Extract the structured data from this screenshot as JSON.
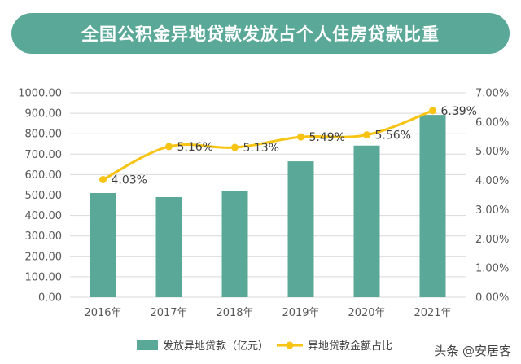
{
  "header": {
    "title": "全国公积金异地贷款发放占个人住房贷款比重"
  },
  "chart_data": {
    "type": "bar+line",
    "categories": [
      "2016年",
      "2017年",
      "2018年",
      "2019年",
      "2020年",
      "2021年"
    ],
    "series": [
      {
        "name": "发放异地贷款（亿元）",
        "type": "bar",
        "axis": "left",
        "values": [
          510,
          490,
          522,
          665,
          742,
          892
        ]
      },
      {
        "name": "异地贷款金额占比",
        "type": "line",
        "axis": "right",
        "values": [
          4.03,
          5.16,
          5.13,
          5.49,
          5.56,
          6.39
        ],
        "labels": [
          "4.03%",
          "5.16%",
          "5.13%",
          "5.49%",
          "5.56%",
          "6.39%"
        ]
      }
    ],
    "y_left": {
      "min": 0,
      "max": 1000,
      "ticks": [
        "0.00",
        "100.00",
        "200.00",
        "300.00",
        "400.00",
        "500.00",
        "600.00",
        "700.00",
        "800.00",
        "900.00",
        "1000.00"
      ]
    },
    "y_right": {
      "min": 0,
      "max": 7,
      "ticks": [
        "0.00%",
        "1.00%",
        "2.00%",
        "3.00%",
        "4.00%",
        "5.00%",
        "6.00%",
        "7.00%"
      ]
    },
    "grid": true,
    "legend_position": "bottom",
    "colors": {
      "bar": "#5aa897",
      "line": "#f7c414",
      "header": "#5aa897"
    }
  },
  "watermark": "头条 @安居客"
}
